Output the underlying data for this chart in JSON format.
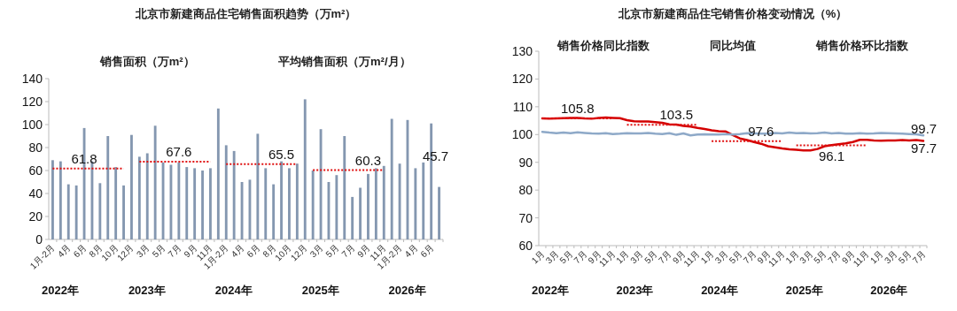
{
  "chart_data": [
    {
      "type": "bar",
      "title": "北京市新建商品住宅销售面积趋势（万m²）",
      "categories": [
        "1月-2月",
        null,
        "4月",
        null,
        "6月",
        null,
        "8月",
        null,
        "10月",
        null,
        "12月",
        null,
        "3月",
        null,
        "5月",
        null,
        "7月",
        null,
        "9月",
        null,
        "11月",
        null,
        "1月-2月",
        null,
        "4月",
        null,
        "6月",
        null,
        "8月",
        null,
        "10月",
        null,
        "12月",
        null,
        "3月",
        null,
        "5月",
        null,
        "7月",
        null,
        "9月",
        null,
        "11月",
        null,
        "1月-2月",
        null,
        "4月",
        null,
        "6月",
        null
      ],
      "series": [
        {
          "type": "bar",
          "color": "#8497b0",
          "values": [
            69,
            68,
            48,
            47,
            97,
            68,
            49,
            90,
            63,
            47,
            91,
            72,
            75,
            99,
            67,
            65,
            67,
            63,
            62,
            60,
            62,
            114,
            82,
            77,
            50,
            52,
            92,
            62,
            48,
            68,
            62,
            66,
            122,
            60,
            96,
            50,
            56,
            90,
            37,
            45,
            57,
            62,
            64,
            105,
            66,
            104,
            62,
            67,
            101,
            45.7
          ],
          "value_labels": [
            null,
            null,
            null,
            null,
            null,
            null,
            null,
            null,
            null,
            null,
            null,
            null,
            null,
            null,
            null,
            null,
            null,
            null,
            null,
            null,
            null,
            null,
            null,
            null,
            null,
            null,
            null,
            null,
            null,
            null,
            null,
            null,
            null,
            null,
            null,
            null,
            null,
            null,
            null,
            null,
            null,
            null,
            null,
            null,
            null,
            null,
            null,
            null,
            null,
            "45.7"
          ]
        },
        {
          "type": "line",
          "color": "#e01010",
          "line_style": "dotted",
          "values": [
            61.8,
            61.8,
            61.8,
            61.8,
            61.8,
            61.8,
            61.8,
            61.8,
            61.8,
            61.8,
            null,
            67.6,
            67.6,
            67.6,
            67.6,
            67.6,
            67.6,
            67.6,
            67.6,
            67.6,
            67.6,
            null,
            65.5,
            65.5,
            65.5,
            65.5,
            65.5,
            65.5,
            65.5,
            65.5,
            65.5,
            65.5,
            null,
            60.3,
            60.3,
            60.3,
            60.3,
            60.3,
            60.3,
            60.3,
            60.3,
            60.3,
            60.3,
            null,
            null,
            null,
            null,
            null,
            null,
            null
          ],
          "value_labels": [
            null,
            null,
            null,
            null,
            "61.8",
            null,
            null,
            null,
            null,
            null,
            null,
            null,
            null,
            null,
            null,
            null,
            "67.6",
            null,
            null,
            null,
            null,
            null,
            null,
            null,
            null,
            null,
            null,
            null,
            null,
            "65.5",
            null,
            null,
            null,
            null,
            null,
            null,
            null,
            null,
            null,
            null,
            "60.3",
            null,
            null,
            null,
            null,
            null,
            null,
            null,
            null,
            null
          ]
        }
      ],
      "ylim": [
        0,
        140
      ],
      "yticks": [
        0,
        20,
        40,
        60,
        80,
        100,
        120,
        140
      ],
      "annotations": [
        "销售面积（万m²）",
        "平均销售面积（万m²/月）",
        "2022年",
        "2023年",
        "2024年",
        "2025年",
        "2026年"
      ]
    },
    {
      "type": "line",
      "title": "北京市新建商品住宅销售价格变动情况（%）",
      "categories": [
        "1月",
        null,
        "3月",
        null,
        "5月",
        null,
        "7月",
        null,
        "9月",
        null,
        "11月",
        null,
        "1月",
        null,
        "3月",
        null,
        "5月",
        null,
        "7月",
        null,
        "9月",
        null,
        "11月",
        null,
        "1月",
        null,
        "3月",
        null,
        "5月",
        null,
        "7月",
        null,
        "9月",
        null,
        "11月",
        null,
        "1月",
        null,
        "3月",
        null,
        "5月",
        null,
        "7月",
        null,
        "9月",
        null,
        "11月",
        null,
        "1月",
        null,
        "3月",
        null,
        "5月",
        null,
        "7月"
      ],
      "series": [
        {
          "color": "#d40000",
          "values": [
            105.8,
            105.7,
            105.8,
            105.9,
            106,
            106,
            105.8,
            105.7,
            106,
            106.1,
            106,
            105.9,
            105.2,
            104.8,
            104.7,
            104.7,
            104.5,
            104.2,
            103.7,
            103.6,
            103.1,
            102.9,
            102.4,
            102,
            101.5,
            101.2,
            101.1,
            99.8,
            98.6,
            98,
            97.3,
            96.7,
            95.8,
            95.4,
            95,
            94.7,
            94.5,
            94.3,
            94.3,
            94.8,
            95.8,
            96.2,
            96.5,
            96.8,
            97.3,
            98.1,
            98.1,
            97.9,
            97.8,
            97.9,
            97.9,
            98,
            97.9,
            98,
            97.7
          ],
          "value_labels": [
            null,
            null,
            null,
            null,
            null,
            null,
            null,
            null,
            null,
            null,
            null,
            null,
            null,
            null,
            null,
            null,
            null,
            null,
            null,
            null,
            null,
            null,
            null,
            null,
            null,
            null,
            null,
            null,
            null,
            null,
            null,
            null,
            null,
            null,
            null,
            null,
            null,
            null,
            null,
            null,
            null,
            null,
            null,
            null,
            null,
            null,
            null,
            null,
            null,
            null,
            null,
            null,
            null,
            null,
            "97.7"
          ]
        },
        {
          "color": "#8ea9c8",
          "values": [
            101,
            100.7,
            100.5,
            100.7,
            100.5,
            100.8,
            100.6,
            100.4,
            100.3,
            100.5,
            100.2,
            100.3,
            100.5,
            100.4,
            100.4,
            100.6,
            100.3,
            100.2,
            100.5,
            99.9,
            100.4,
            99.7,
            100,
            100.1,
            100,
            100,
            100.2,
            100,
            100.2,
            100.5,
            100.4,
            100.3,
            100.3,
            100.6,
            100.4,
            100.7,
            100.5,
            100.6,
            100.4,
            100.5,
            100.7,
            100.4,
            100.6,
            100.3,
            100.3,
            100.5,
            100.3,
            100.4,
            100.6,
            100.5,
            100.4,
            100.3,
            100.2,
            100.1,
            99.7
          ],
          "value_labels": [
            null,
            null,
            null,
            null,
            null,
            null,
            null,
            null,
            null,
            null,
            null,
            null,
            null,
            null,
            null,
            null,
            null,
            null,
            null,
            null,
            null,
            null,
            null,
            null,
            null,
            null,
            null,
            null,
            null,
            null,
            null,
            null,
            null,
            null,
            null,
            null,
            null,
            null,
            null,
            null,
            null,
            null,
            null,
            null,
            null,
            null,
            null,
            null,
            null,
            null,
            null,
            null,
            null,
            null,
            "99.7"
          ]
        },
        {
          "color": "#e01010",
          "line_style": "dotted",
          "values": [
            105.8,
            105.8,
            105.8,
            105.8,
            105.8,
            105.8,
            105.8,
            105.8,
            105.8,
            105.8,
            105.8,
            null,
            103.5,
            103.5,
            103.5,
            103.5,
            103.5,
            103.5,
            103.5,
            103.5,
            103.5,
            103.5,
            103.5,
            null,
            97.6,
            97.6,
            97.6,
            97.6,
            97.6,
            97.6,
            97.6,
            97.6,
            97.6,
            97.6,
            97.6,
            null,
            96.1,
            96.1,
            96.1,
            96.1,
            96.1,
            96.1,
            96.1,
            96.1,
            96.1,
            96.1,
            96.1,
            null,
            null,
            null,
            null,
            null,
            null,
            null,
            null
          ],
          "value_labels": [
            null,
            null,
            null,
            null,
            null,
            "105.8",
            null,
            null,
            null,
            null,
            null,
            null,
            null,
            null,
            null,
            null,
            null,
            null,
            null,
            "103.5",
            null,
            null,
            null,
            null,
            null,
            null,
            null,
            null,
            null,
            null,
            null,
            "97.6",
            null,
            null,
            null,
            null,
            null,
            null,
            null,
            null,
            null,
            "96.1",
            null,
            null,
            null,
            null,
            null,
            null,
            null,
            null,
            null,
            null,
            null,
            null,
            null
          ]
        }
      ],
      "ylim": [
        60,
        130
      ],
      "yticks": [
        60,
        70,
        80,
        90,
        100,
        110,
        120,
        130
      ],
      "annotations": [
        "销售价格同比指数",
        "同比均值",
        "销售价格环比指数",
        "2022年",
        "2023年",
        "2024年",
        "2025年",
        "2026年"
      ]
    }
  ]
}
